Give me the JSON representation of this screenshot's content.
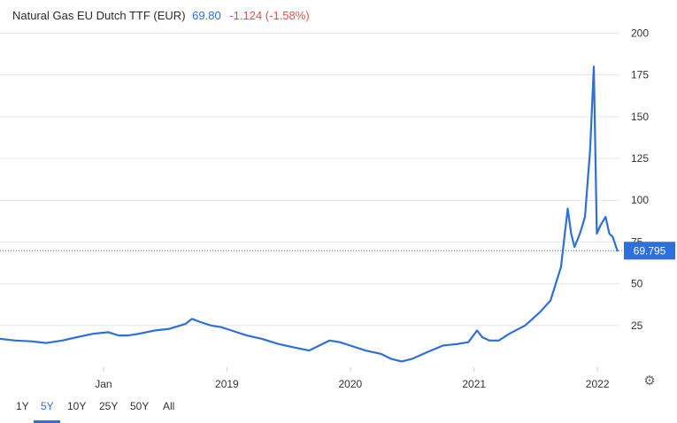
{
  "header": {
    "instrument": "Natural Gas EU Dutch TTF (EUR)",
    "last": "69.80",
    "change": "-1.124 (-1.58%)"
  },
  "chart_data": {
    "type": "line",
    "title": "Natural Gas EU Dutch TTF (EUR)",
    "xlabel": "",
    "ylabel": "",
    "ylim": [
      0,
      205
    ],
    "y_ticks": [
      25,
      50,
      75,
      100,
      125,
      150,
      175,
      200
    ],
    "x_ticks": [
      {
        "label": "Jan",
        "date": "2018-01-01"
      },
      {
        "label": "2019",
        "date": "2019-01-01"
      },
      {
        "label": "2020",
        "date": "2020-01-01"
      },
      {
        "label": "2021",
        "date": "2021-01-01"
      },
      {
        "label": "2022",
        "date": "2022-01-01"
      }
    ],
    "x_range": [
      "2017-03-01",
      "2022-03-07"
    ],
    "grid": "horizontal",
    "current_value_label": "69.795",
    "current_value": 69.795,
    "line_color": "#2e6fd8",
    "series": [
      {
        "name": "",
        "points": [
          [
            "2017-03-01",
            17
          ],
          [
            "2017-04-15",
            16
          ],
          [
            "2017-06-01",
            15.5
          ],
          [
            "2017-07-15",
            14.5
          ],
          [
            "2017-09-01",
            16
          ],
          [
            "2017-10-15",
            18
          ],
          [
            "2017-12-01",
            20
          ],
          [
            "2018-01-15",
            21
          ],
          [
            "2018-02-15",
            19
          ],
          [
            "2018-03-15",
            19
          ],
          [
            "2018-04-15",
            20
          ],
          [
            "2018-06-01",
            22
          ],
          [
            "2018-07-15",
            23
          ],
          [
            "2018-09-01",
            26
          ],
          [
            "2018-09-20",
            29
          ],
          [
            "2018-10-15",
            27
          ],
          [
            "2018-11-15",
            25
          ],
          [
            "2018-12-15",
            24
          ],
          [
            "2019-01-15",
            22
          ],
          [
            "2019-03-01",
            19
          ],
          [
            "2019-04-15",
            17
          ],
          [
            "2019-06-01",
            14
          ],
          [
            "2019-07-15",
            12
          ],
          [
            "2019-09-01",
            10
          ],
          [
            "2019-10-01",
            13
          ],
          [
            "2019-11-01",
            16
          ],
          [
            "2019-12-01",
            15
          ],
          [
            "2020-01-01",
            13
          ],
          [
            "2020-02-15",
            10
          ],
          [
            "2020-04-01",
            8
          ],
          [
            "2020-05-01",
            5
          ],
          [
            "2020-06-01",
            3.5
          ],
          [
            "2020-07-01",
            5
          ],
          [
            "2020-08-15",
            9
          ],
          [
            "2020-10-01",
            13
          ],
          [
            "2020-11-15",
            14
          ],
          [
            "2020-12-15",
            15
          ],
          [
            "2021-01-10",
            22
          ],
          [
            "2021-01-25",
            18
          ],
          [
            "2021-02-15",
            16
          ],
          [
            "2021-03-15",
            16
          ],
          [
            "2021-04-15",
            20
          ],
          [
            "2021-06-01",
            25
          ],
          [
            "2021-07-15",
            33
          ],
          [
            "2021-08-15",
            40
          ],
          [
            "2021-09-15",
            60
          ],
          [
            "2021-10-05",
            95
          ],
          [
            "2021-10-15",
            80
          ],
          [
            "2021-10-25",
            72
          ],
          [
            "2021-11-10",
            80
          ],
          [
            "2021-11-25",
            90
          ],
          [
            "2021-12-10",
            130
          ],
          [
            "2021-12-21",
            180
          ],
          [
            "2021-12-30",
            80
          ],
          [
            "2022-01-10",
            85
          ],
          [
            "2022-01-25",
            90
          ],
          [
            "2022-02-05",
            80
          ],
          [
            "2022-02-15",
            78
          ],
          [
            "2022-02-25",
            72
          ],
          [
            "2022-03-01",
            69.8
          ]
        ]
      }
    ]
  },
  "range_selector": {
    "options": [
      "1Y",
      "5Y",
      "10Y",
      "25Y",
      "50Y",
      "All"
    ],
    "active": "5Y"
  },
  "settings": {
    "icon": "gear-icon"
  }
}
